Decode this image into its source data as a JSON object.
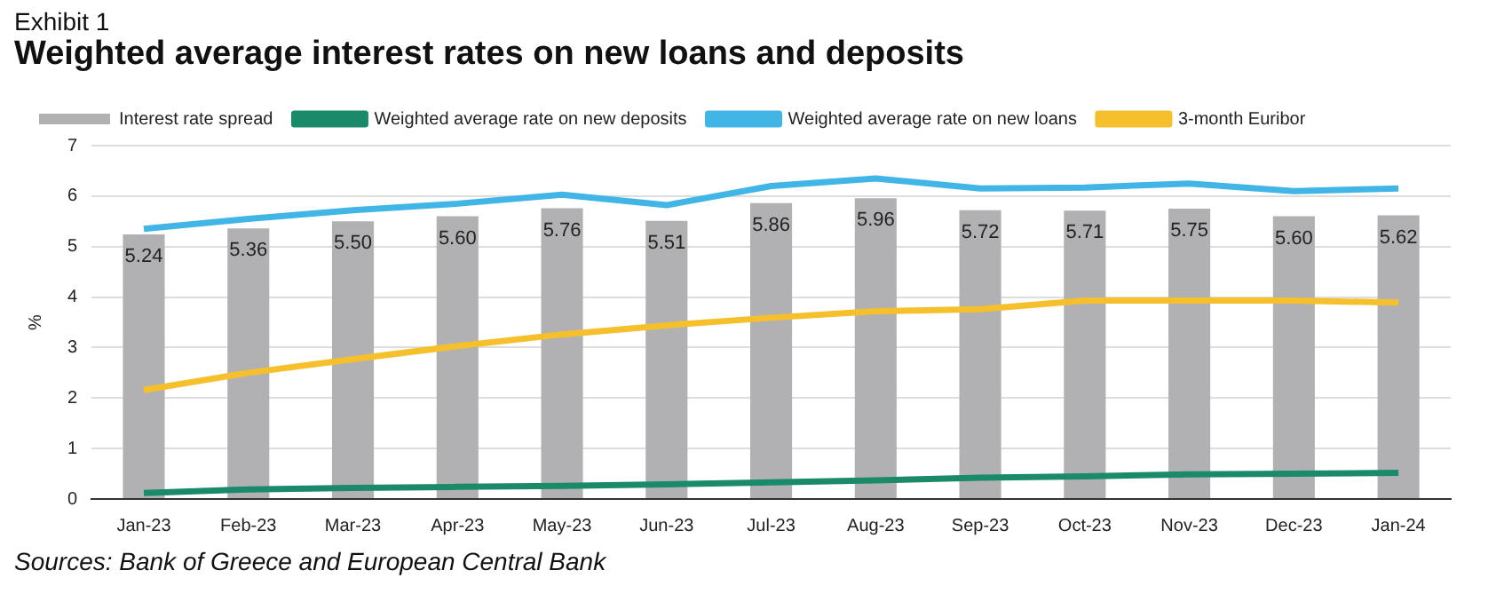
{
  "chart_data": {
    "type": "bar",
    "title": "Weighted average interest rates on new loans and deposits",
    "subtitle": "Exhibit 1",
    "ylabel": "%",
    "categories": [
      "Jan-23",
      "Feb-23",
      "Mar-23",
      "Apr-23",
      "May-23",
      "Jun-23",
      "Jul-23",
      "Aug-23",
      "Sep-23",
      "Oct-23",
      "Nov-23",
      "Dec-23",
      "Jan-24"
    ],
    "series": [
      {
        "name": "Interest rate spread",
        "color": "#b1b1b3",
        "values": [
          5.24,
          5.36,
          5.5,
          5.6,
          5.76,
          5.51,
          5.86,
          5.96,
          5.72,
          5.71,
          5.75,
          5.6,
          5.62
        ],
        "value_labels": [
          "5.24",
          "5.36",
          "5.50",
          "5.60",
          "5.76",
          "5.51",
          "5.86",
          "5.96",
          "5.72",
          "5.71",
          "5.75",
          "5.60",
          "5.62"
        ]
      },
      {
        "name": "Weighted average rate on new deposits",
        "type": "line",
        "color": "#1a8a6a",
        "values": [
          0.12,
          0.19,
          0.22,
          0.24,
          0.26,
          0.29,
          0.33,
          0.37,
          0.42,
          0.45,
          0.49,
          0.5,
          0.52
        ]
      },
      {
        "name": "Weighted average rate on new loans",
        "type": "line",
        "color": "#41b6e6",
        "values": [
          5.35,
          5.55,
          5.72,
          5.85,
          6.03,
          5.82,
          6.2,
          6.35,
          6.15,
          6.17,
          6.25,
          6.1,
          6.15
        ]
      },
      {
        "name": "3-month Euribor",
        "type": "line",
        "color": "#f5c02c",
        "values": [
          2.16,
          2.5,
          2.77,
          3.03,
          3.26,
          3.44,
          3.59,
          3.72,
          3.76,
          3.93,
          3.93,
          3.93,
          3.89
        ]
      }
    ],
    "ylim": [
      0,
      7
    ],
    "yticks": [
      0,
      1,
      2,
      3,
      4,
      5,
      6,
      7
    ],
    "grid": "y",
    "legend": "top",
    "marker": "none",
    "line_style": "solid",
    "annotations": [
      "Sources: Bank of Greece and European Central Bank"
    ]
  }
}
